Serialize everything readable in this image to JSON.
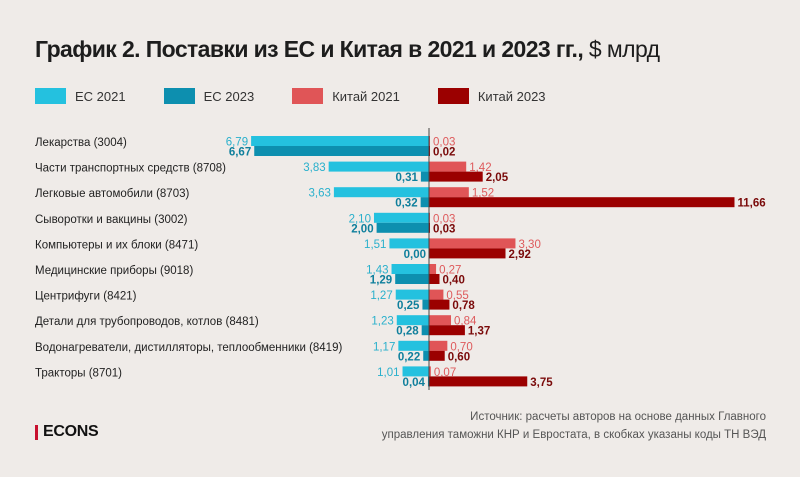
{
  "header": {
    "title": "График 2. Поставки из ЕС и Китая в 2021 и 2023 гг.,",
    "unit": " $ млрд"
  },
  "chart_data": {
    "type": "bar",
    "orientation": "horizontal-diverging",
    "title": "График 2. Поставки из ЕС и Китая в 2021 и 2023 гг., $ млрд",
    "categories": [
      "Лекарства (3004)",
      "Части транспортных средств (8708)",
      "Легковые автомобили (8703)",
      "Сыворотки и вакцины (3002)",
      "Компьютеры и их блоки (8471)",
      "Медицинские приборы (9018)",
      "Центрифуги (8421)",
      "Детали для трубопроводов, котлов (8481)",
      "Водонагреватели, дистилляторы, теплообменники (8419)",
      "Тракторы (8701)"
    ],
    "series": [
      {
        "name": "ЕС 2021",
        "side": "left",
        "color": "#24c1df",
        "label_color": "#2ab0cc",
        "values": [
          6.79,
          3.83,
          3.63,
          2.1,
          1.51,
          1.43,
          1.27,
          1.23,
          1.17,
          1.01
        ],
        "labels": [
          "6,79",
          "3,83",
          "3,63",
          "2,10",
          "1,51",
          "1,43",
          "1,27",
          "1,23",
          "1,17",
          "1,01"
        ]
      },
      {
        "name": "ЕС 2023",
        "side": "left",
        "color": "#0d8faf",
        "label_color": "#0f7f9c",
        "values": [
          6.67,
          0.31,
          0.32,
          2.0,
          0.0,
          1.29,
          0.25,
          0.28,
          0.22,
          0.04
        ],
        "labels": [
          "6,67",
          "0,31",
          "0,32",
          "2,00",
          "0,00",
          "1,29",
          "0,25",
          "0,28",
          "0,22",
          "0,04"
        ]
      },
      {
        "name": "Китай 2021",
        "side": "right",
        "color": "#e05557",
        "label_color": "#de5a5c",
        "values": [
          0.03,
          1.42,
          1.52,
          0.03,
          3.3,
          0.27,
          0.55,
          0.84,
          0.7,
          0.07
        ],
        "labels": [
          "0,03",
          "1,42",
          "1,52",
          "0,03",
          "3,30",
          "0,27",
          "0,55",
          "0,84",
          "0,70",
          "0,07"
        ]
      },
      {
        "name": "Китай 2023",
        "side": "right",
        "color": "#9b0000",
        "label_color": "#7a0a0a",
        "values": [
          0.02,
          2.05,
          11.66,
          0.03,
          2.92,
          0.4,
          0.78,
          1.37,
          0.6,
          3.75
        ],
        "labels": [
          "0,02",
          "2,05",
          "11,66",
          "0,03",
          "2,92",
          "0,40",
          "0,78",
          "1,37",
          "0,60",
          "3,75"
        ]
      }
    ],
    "xlabel": "",
    "ylabel": "",
    "grid": false,
    "legend_position": "top-left"
  },
  "footer": {
    "logo": "ECONS",
    "source_line1": "Источник: расчеты авторов на основе данных Главного",
    "source_line2": "управления таможни КНР и Евростата, в скобках указаны коды ТН ВЭД"
  }
}
